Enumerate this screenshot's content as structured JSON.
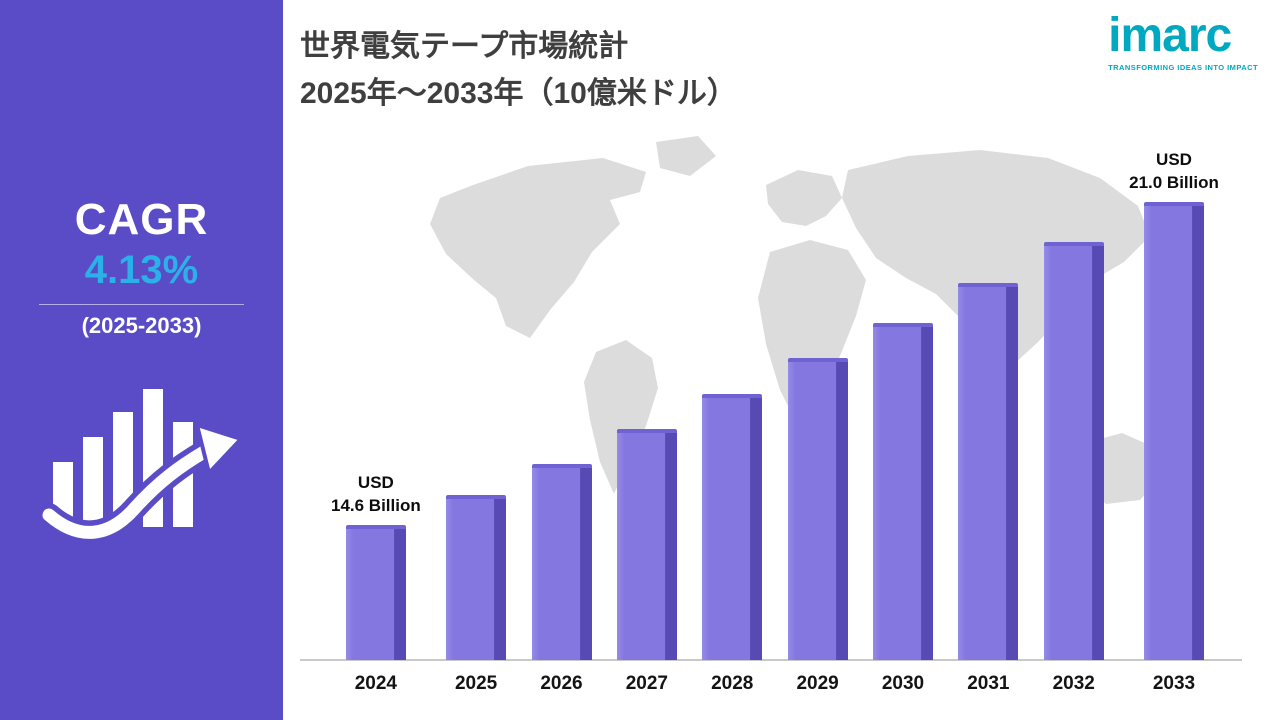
{
  "colors": {
    "sidebar_bg": "#5a4cc7",
    "accent_cyan": "#2bb1e8",
    "bar_fill": "#8478e0",
    "bar_edge": "#574ab5",
    "bar_highlight": "#958be9",
    "logo_teal": "#00a9c0",
    "title_text": "#3f3f3f",
    "map_gray": "#d9d9d9"
  },
  "sidebar": {
    "cagr_label": "CAGR",
    "cagr_value": "4.13%",
    "cagr_period": "(2025-2033)"
  },
  "header": {
    "title_line1": "世界電気テープ市場統計",
    "title_line2": "2025年～2033年（10億米ドル）"
  },
  "logo": {
    "name": "imarc",
    "tagline": "TRANSFORMING IDEAS INTO IMPACT"
  },
  "chart_data": {
    "type": "bar",
    "title": "世界電気テープ市場統計 2025年～2033年（10億米ドル）",
    "unit": "USD Billion",
    "categories": [
      "2024",
      "2025",
      "2026",
      "2027",
      "2028",
      "2029",
      "2030",
      "2031",
      "2032",
      "2033"
    ],
    "values": [
      14.6,
      15.2,
      15.8,
      16.5,
      17.2,
      17.9,
      18.6,
      19.4,
      20.2,
      21.0
    ],
    "xlabel": "",
    "ylabel": "",
    "grid": false,
    "value_axis_visible": false,
    "legend": "none",
    "annotations": {
      "first": {
        "lines": [
          "USD",
          "14.6 Billion"
        ]
      },
      "last": {
        "lines": [
          "USD",
          "21.0 Billion"
        ]
      }
    }
  }
}
